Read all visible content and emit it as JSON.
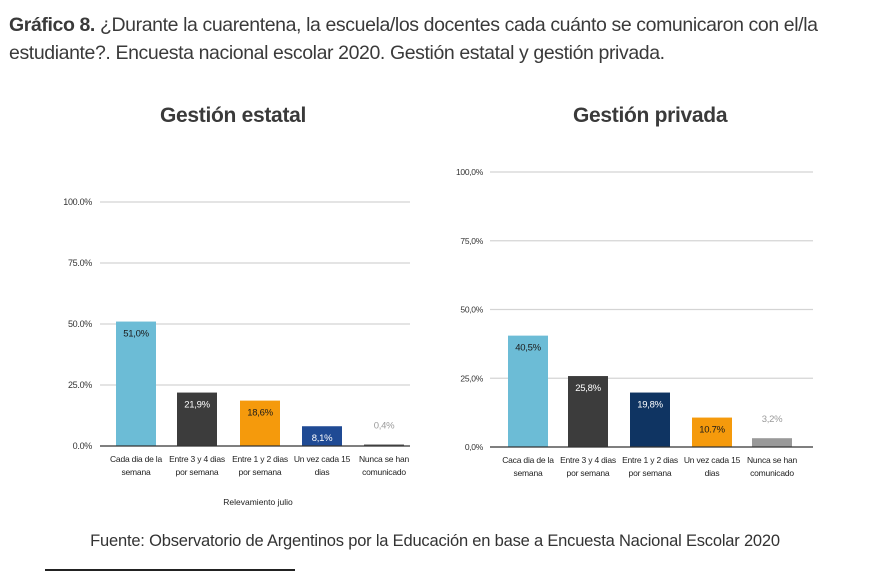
{
  "title": {
    "prefix": "Gráfico 8.",
    "text": " ¿Durante la cuarentena, la escuela/los docentes cada cuánto se comunicaron con el/la estudiante?. Encuesta nacional escolar 2020. Gestión estatal y gestión privada."
  },
  "source": "Fuente: Observatorio de Argentinos por la Educación en base a Encuesta Nacional Escolar 2020",
  "chart_data": [
    {
      "type": "bar",
      "title": "Gestión estatal",
      "xlabel": "Relevamiento julio",
      "ylabel": "",
      "ylim": [
        0,
        100
      ],
      "grid": true,
      "yticks": [
        0,
        25,
        50,
        75,
        100
      ],
      "ytick_labels": [
        "0.0%",
        "25.0%",
        "50.0%",
        "75.0%",
        "100.0%"
      ],
      "categories": [
        [
          "Cada dia de la",
          "semana"
        ],
        [
          "Entre 3 y 4 dias",
          "por semana"
        ],
        [
          "Entre 1 y 2 dias",
          "por semana"
        ],
        [
          "Un vez cada 15",
          "dias"
        ],
        [
          "Nunca se han",
          "comunicado"
        ]
      ],
      "values": [
        51.0,
        21.9,
        18.6,
        8.1,
        0.4
      ],
      "data_labels": [
        "51,0%",
        "21,9%",
        "18,6%",
        "8,1%",
        "0,4%"
      ],
      "colors": [
        "#6cbcd6",
        "#3c3c3c",
        "#f59a0c",
        "#1f4a94",
        "#555555"
      ],
      "label_colors": [
        "#1a1a1a",
        "#ffffff",
        "#1a1a1a",
        "#ffffff",
        "#9a9a9a"
      ]
    },
    {
      "type": "bar",
      "title": "Gestión privada",
      "xlabel": "",
      "ylabel": "",
      "ylim": [
        0,
        100
      ],
      "grid": true,
      "yticks": [
        0,
        25,
        50,
        75,
        100
      ],
      "ytick_labels": [
        "0,0%",
        "25,0%",
        "50,0%",
        "75,0%",
        "100,0%"
      ],
      "categories": [
        [
          "Caca dia de la",
          "semana"
        ],
        [
          "Entre 3 y 4 dias",
          "por semana"
        ],
        [
          "Entre 1 y 2 dias",
          "por semana"
        ],
        [
          "Un vez cada 15",
          "dias"
        ],
        [
          "Nunca se han",
          "comunicado"
        ]
      ],
      "values": [
        40.5,
        25.8,
        19.8,
        10.7,
        3.2
      ],
      "data_labels": [
        "40,5%",
        "25,8%",
        "19,8%",
        "10.7%",
        "3,2%"
      ],
      "colors": [
        "#6cbcd6",
        "#3c3c3c",
        "#0f3462",
        "#f59a0c",
        "#999999"
      ],
      "label_colors": [
        "#1a1a1a",
        "#ffffff",
        "#ffffff",
        "#1a1a1a",
        "#9a9a9a"
      ]
    }
  ]
}
